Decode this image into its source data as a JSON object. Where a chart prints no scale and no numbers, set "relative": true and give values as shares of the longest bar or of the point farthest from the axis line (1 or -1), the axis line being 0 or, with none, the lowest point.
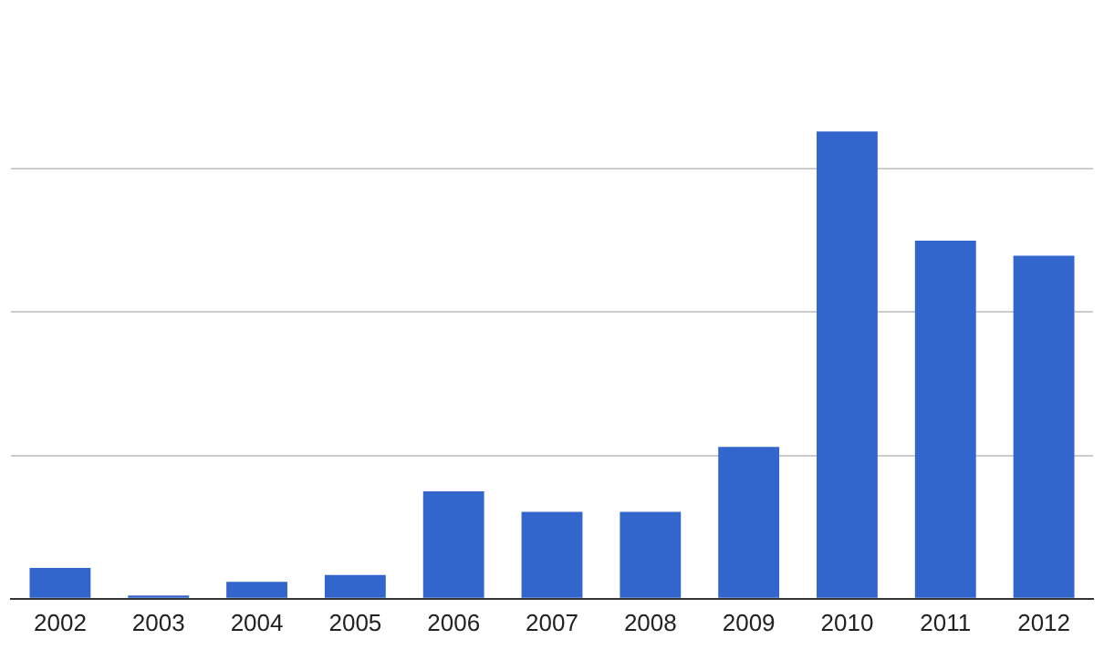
{
  "chart_data": {
    "type": "bar",
    "relative": true,
    "grid": "y",
    "color": "#3366cc",
    "categories": [
      "2002",
      "2003",
      "2004",
      "2005",
      "2006",
      "2007",
      "2008",
      "2009",
      "2010",
      "2011",
      "2012"
    ],
    "values": [
      0.066,
      0.007,
      0.036,
      0.051,
      0.23,
      0.186,
      0.186,
      0.325,
      1,
      0.766,
      0.734
    ]
  }
}
